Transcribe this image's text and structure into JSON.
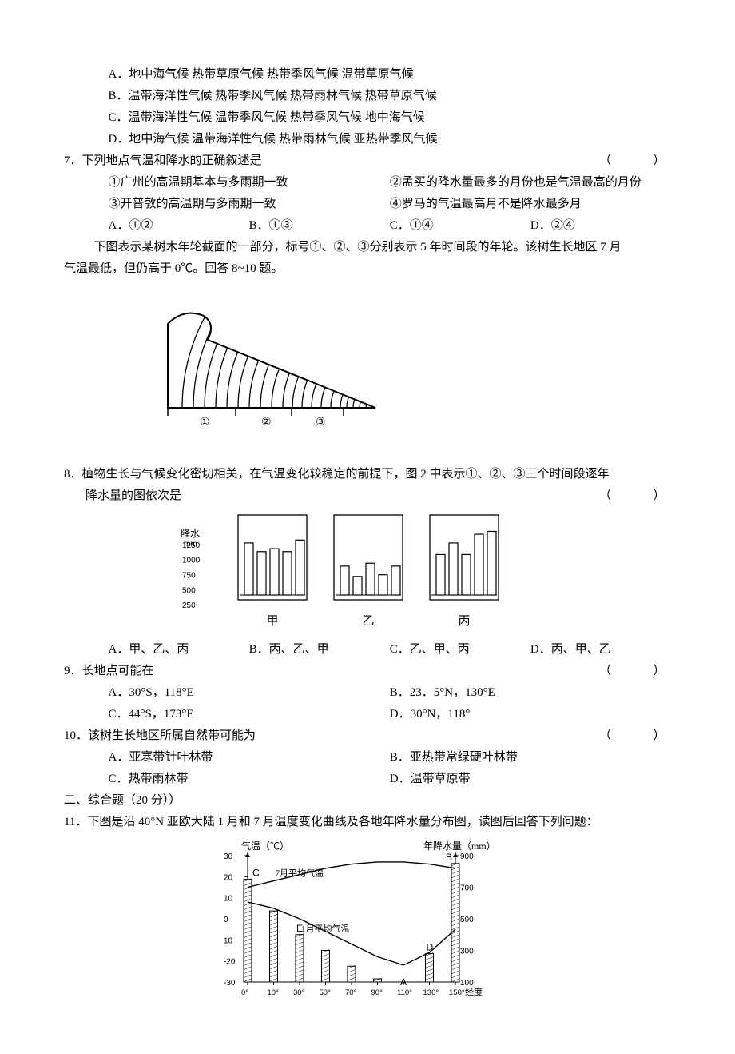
{
  "q6_opts": {
    "A": "A．地中海气候   热带草原气候   热带季风气候   温带草原气候",
    "B": "B．温带海洋性气候   热带季风气候   热带雨林气候   热带草原气候",
    "C": "C．温带海洋性气候   温带季风气候   热带季风气候   地中海气候",
    "D": "D．地中海气候   温带海洋性气候   热带雨林气候   亚热带季风气候"
  },
  "q7": {
    "num": "7．",
    "stem": "下列地点气温和降水的正确叙述是",
    "paren": "（　　）",
    "s1": "①广州的高温期基本与多雨期一致",
    "s2": "②孟买的降水量最多的月份也是气温最高的月份",
    "s3": "③开普敦的高温期与多雨期一致",
    "s4": "④罗马的气温最高月不是降水最多月",
    "A": "A．①②",
    "B": "B．①③",
    "C": "C．①④",
    "D": "D．②④"
  },
  "intro8": {
    "text_a": "下图表示某树木年轮截面的一部分，标号①、②、③分别表示 5 年时间段的年轮。该树生长地区 7 月",
    "text_b": "气温最低，但仍高于 0℃。回答 8~10 题。"
  },
  "tree_ring": {
    "marks": [
      "①",
      "②",
      "③"
    ]
  },
  "q8": {
    "num": "8．",
    "stem_a": "植物生长与气候变化密切相关，在气温变化较稳定的前提下，图 2 中表示①、②、③三个时间段逐年",
    "stem_b": "降水量的图依次是",
    "paren": "（　　）",
    "axis_title": "降水",
    "axis_unit": "mm",
    "yticks": [
      250,
      500,
      750,
      1000,
      1250
    ],
    "panels": {
      "jia": {
        "label": "甲",
        "values": [
          900,
          750,
          800,
          750,
          950
        ]
      },
      "yi": {
        "label": "乙",
        "values": [
          500,
          320,
          550,
          350,
          500
        ]
      },
      "bing": {
        "label": "丙",
        "values": [
          700,
          900,
          700,
          1050,
          1100
        ]
      }
    },
    "A": "A．甲、乙、丙",
    "B": "B．丙、乙、甲",
    "C": "C．乙、甲、丙",
    "D": "D．丙、甲、乙"
  },
  "q9": {
    "num": "9．",
    "stem": "长地点可能在",
    "paren": "（　　）",
    "A": "A．30°S，118°E",
    "B": "B．23．5°N，130°E",
    "C": "C．44°S，173°E",
    "D": "D．30°N，118°"
  },
  "q10": {
    "num": "10．",
    "stem": "该树生长地区所属自然带可能为",
    "paren": "（　　）",
    "A": "A．亚寒带针叶林带",
    "B": "B．亚热带常绿硬叶林带",
    "C": "C．热带雨林带",
    "D": "D．温带草原带"
  },
  "section2": "二、综合题（20 分））",
  "q11": {
    "num": "11．",
    "stem": "下图是沿 40°N 亚欧大陆 1 月和 7 月温度变化曲线及各地年降水量分布图，读图后回答下列问题：",
    "chart": {
      "temp_label": "气温（℃）",
      "precip_label": "年降水量（mm）",
      "jul_label": "7月平均气温",
      "jan_label": "1月平均气温",
      "x_label": "经度",
      "temp_ticks": [
        30,
        20,
        10,
        0,
        "10",
        "-20",
        "-30"
      ],
      "precip_ticks": [
        900,
        700,
        500,
        300,
        100
      ],
      "x_ticks": [
        "0°",
        "10°",
        "30°",
        "50°",
        "70°",
        "90°",
        "110°",
        "130°",
        "150°"
      ],
      "letters": {
        "C": "C",
        "E": "E",
        "A": "A",
        "D": "D",
        "B": "B"
      },
      "jul_temp": [
        15,
        18,
        21,
        24,
        26,
        27,
        27,
        26,
        24
      ],
      "jan_temp": [
        8,
        5,
        0,
        -6,
        -12,
        -18,
        -22,
        -16,
        -5
      ],
      "precip_bars": [
        750,
        550,
        400,
        300,
        200,
        120,
        60,
        280,
        850
      ],
      "bar_color": "#ffffff",
      "bar_border": "#000000",
      "line_color": "#000000",
      "bg": "#ffffff"
    }
  }
}
